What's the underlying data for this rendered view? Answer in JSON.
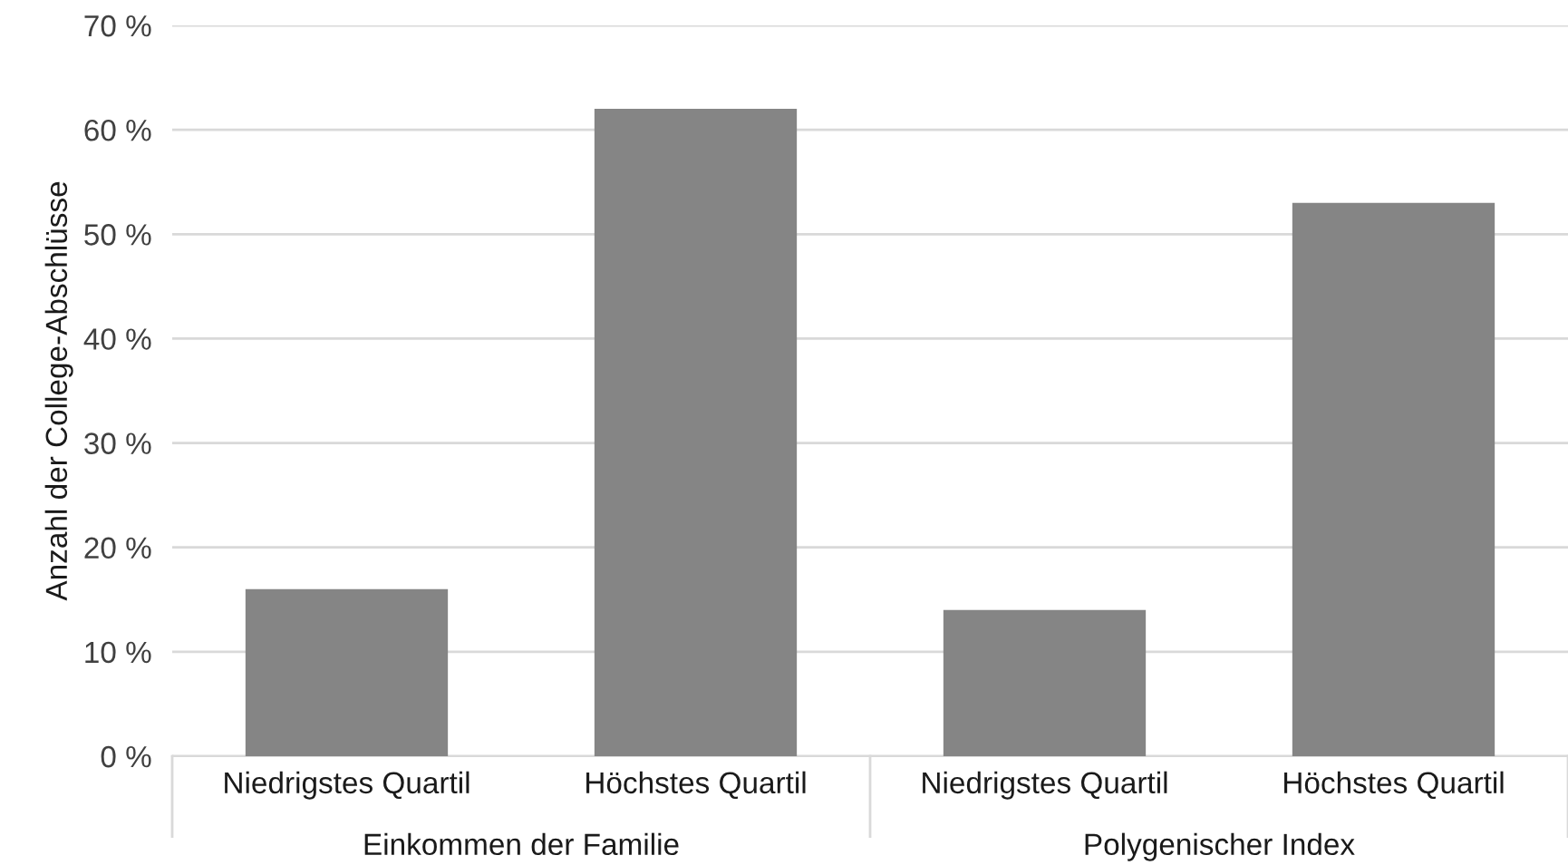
{
  "chart_data": {
    "type": "bar",
    "ylabel": "Anzahl der College-Abschlüsse",
    "categories": [
      "Niedrigstes Quartil",
      "Höchstes Quartil",
      "Niedrigstes Quartil",
      "Höchstes Quartil"
    ],
    "values": [
      16,
      62,
      14,
      53
    ],
    "color": "#858585",
    "ylim": [
      0,
      70
    ],
    "yticks": [
      {
        "value": 0,
        "label": "0 %"
      },
      {
        "value": 10,
        "label": "10 %"
      },
      {
        "value": 20,
        "label": "20 %"
      },
      {
        "value": 30,
        "label": "30 %"
      },
      {
        "value": 40,
        "label": "40 %"
      },
      {
        "value": 50,
        "label": "50 %"
      },
      {
        "value": 60,
        "label": "60 %"
      },
      {
        "value": 70,
        "label": "70 %"
      }
    ],
    "grid": "y",
    "annotations": [
      "Einkommen der Familie",
      "Polygenischer Index"
    ]
  }
}
